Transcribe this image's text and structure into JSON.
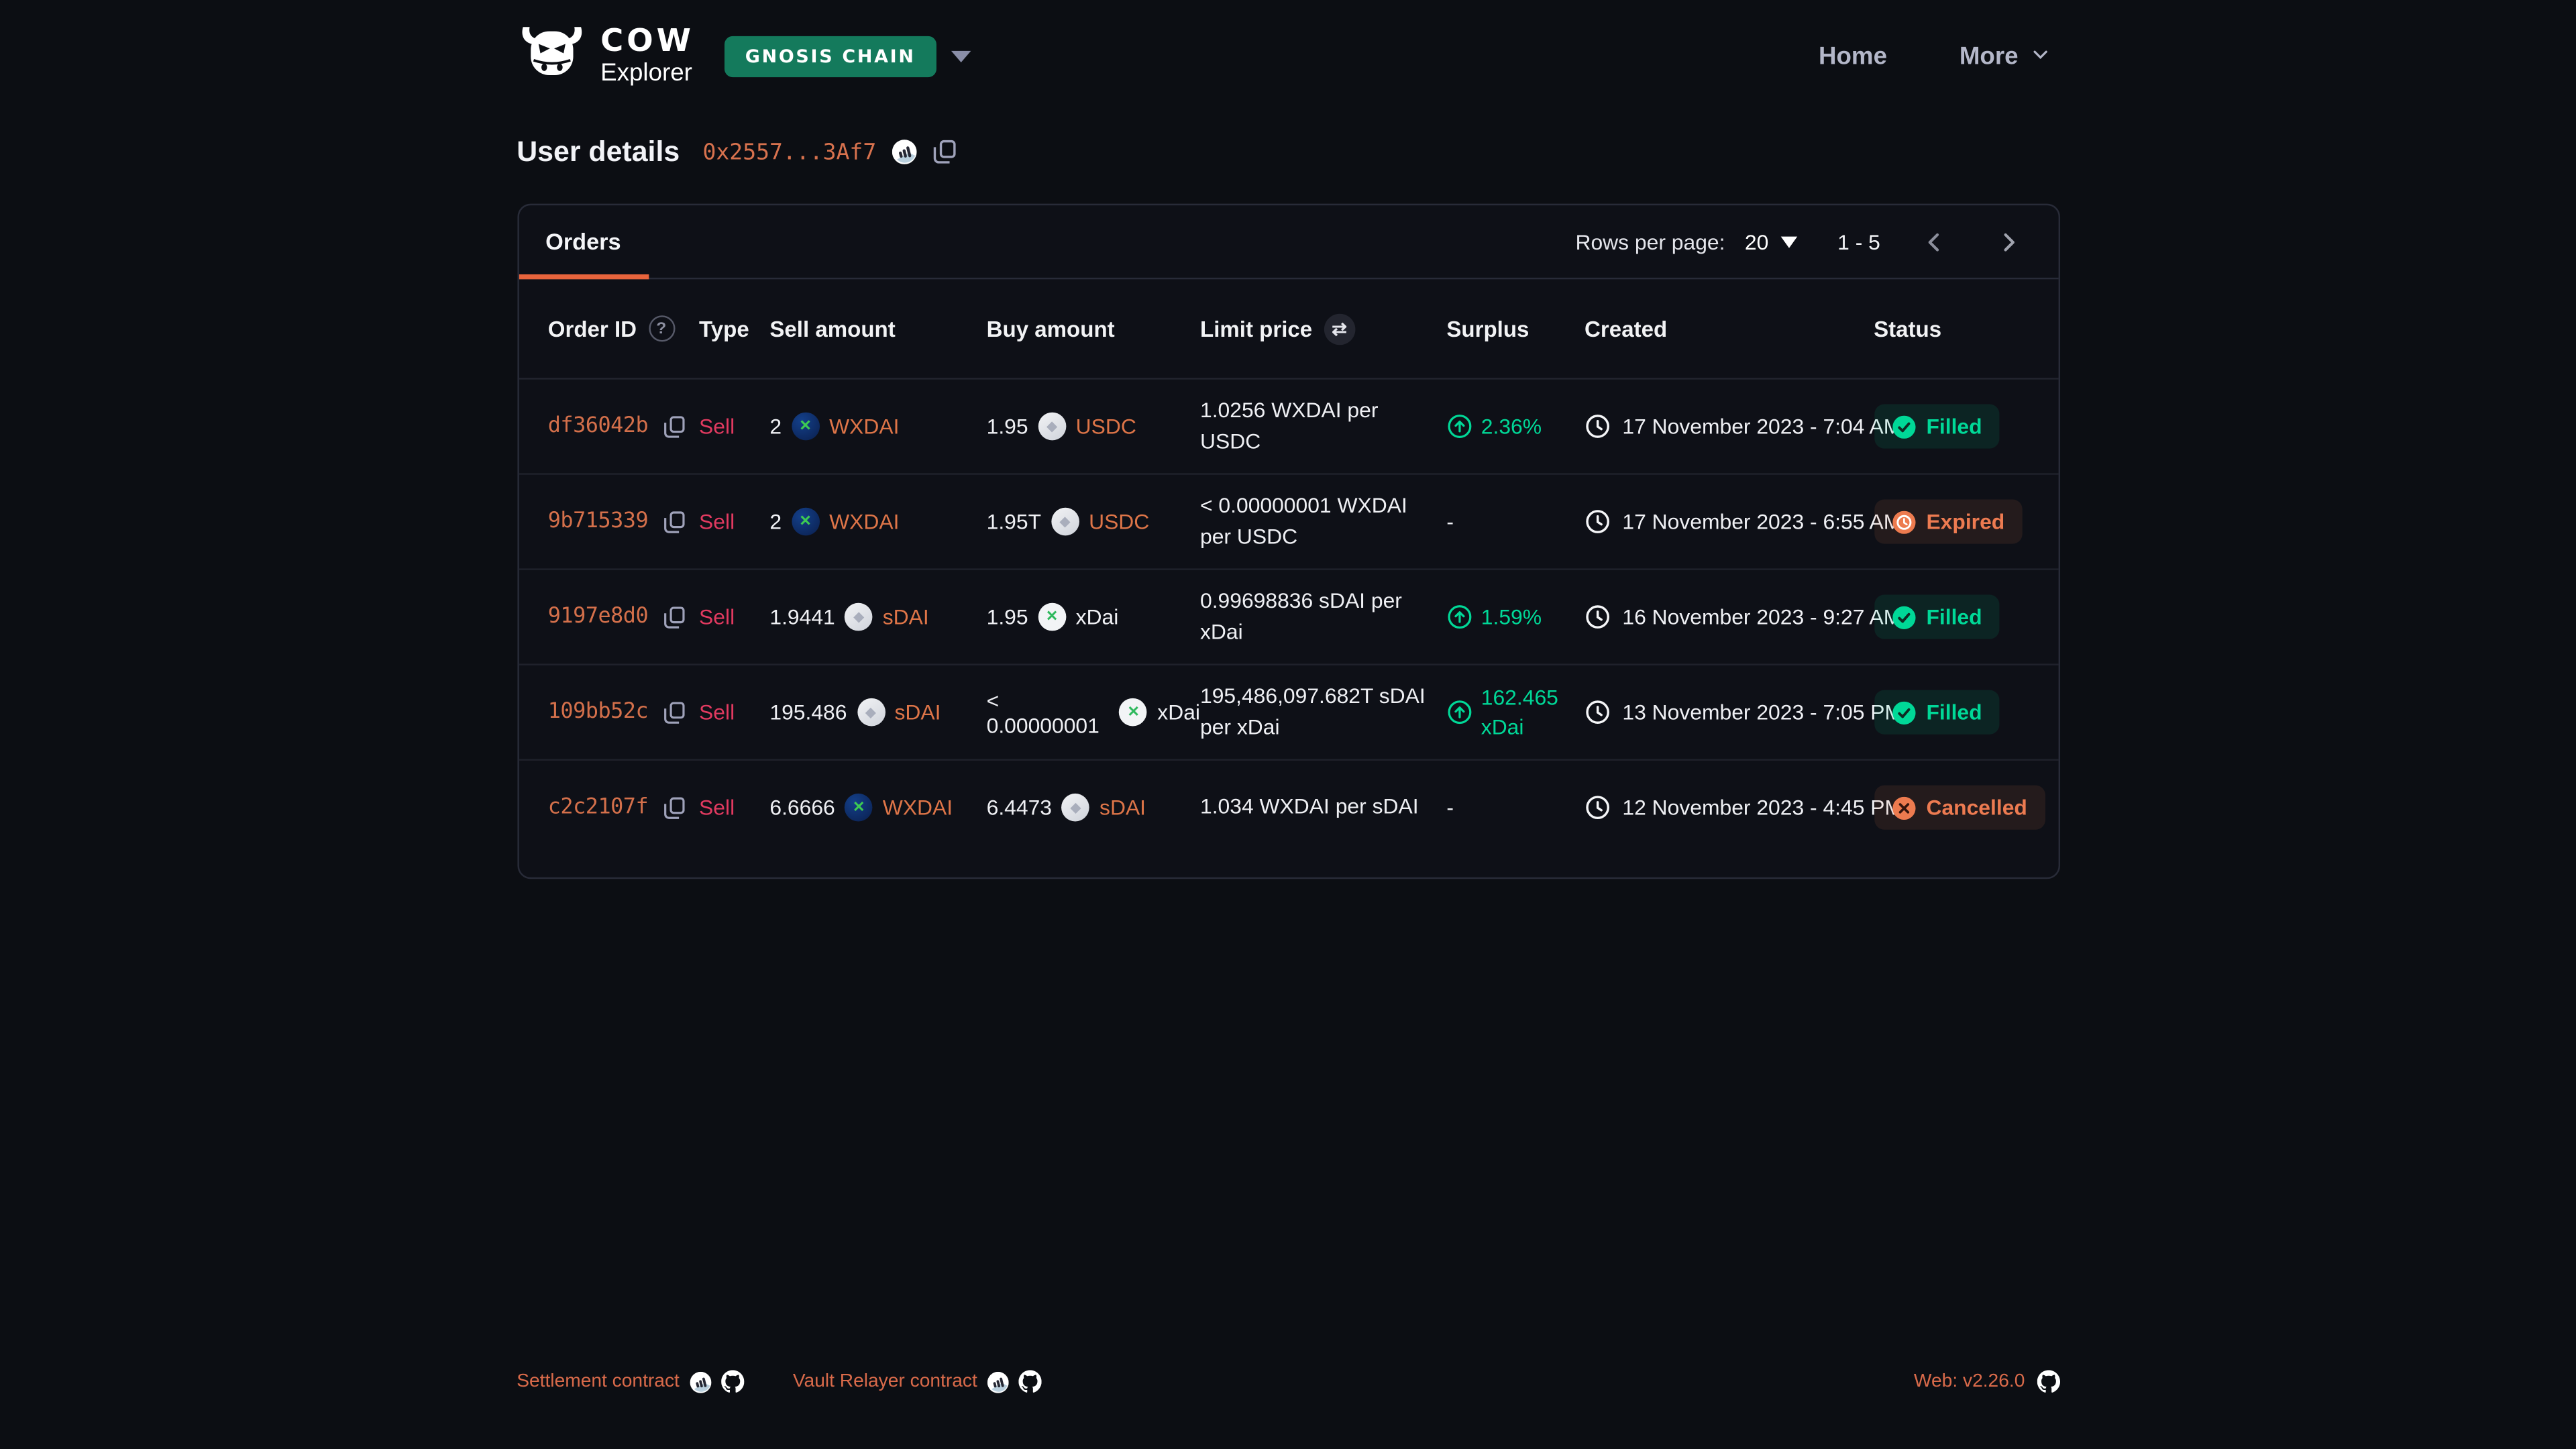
{
  "app": {
    "logo_title": "COW",
    "logo_subtitle": "Explorer",
    "logo_icon": "cow-head-icon",
    "network_badge": "GNOSIS CHAIN",
    "network_caret_icon": "caret-down-icon",
    "nav": [
      {
        "label": "Home"
      },
      {
        "label": "More",
        "icon": "chevron-down-icon"
      }
    ]
  },
  "page": {
    "title": "User details",
    "address_short": "0x2557...3Af7",
    "address_scan_icon": "blockscout-icon",
    "address_copy_icon": "copy-icon"
  },
  "orders_panel": {
    "tab": "Orders",
    "toolbar": {
      "rows_per_page_label": "Rows per page:",
      "rows_per_page_value": "20",
      "range_label": "1 - 5",
      "prev_icon": "chevron-left-icon",
      "next_icon": "chevron-right-icon"
    },
    "columns": [
      {
        "label": "Order ID",
        "icon": "help-circle-icon"
      },
      {
        "label": "Type"
      },
      {
        "label": "Sell amount"
      },
      {
        "label": "Buy amount"
      },
      {
        "label": "Limit price",
        "icon": "swap-icon"
      },
      {
        "label": "Surplus"
      },
      {
        "label": "Created"
      },
      {
        "label": "Status"
      }
    ],
    "row_copy_icon": "copy-icon",
    "created_icon": "clock-icon",
    "rows": [
      {
        "order_id": "df36042b",
        "type": "Sell",
        "sell": {
          "amount": "2",
          "token": "WXDAI",
          "icon": "wxdai-token-icon",
          "link": true
        },
        "buy": {
          "amount": "1.95",
          "token": "USDC",
          "icon": "generic-token-icon",
          "link": true
        },
        "limit_price": "1.0256 WXDAI per USDC",
        "surplus": {
          "text": "2.36%",
          "icon": "arrow-up-circle-icon"
        },
        "created": "17 November 2023 - 7:04 AM",
        "status": {
          "label": "Filled",
          "kind": "filled",
          "icon": "check-circle-icon"
        }
      },
      {
        "order_id": "9b715339",
        "type": "Sell",
        "sell": {
          "amount": "2",
          "token": "WXDAI",
          "icon": "wxdai-token-icon",
          "link": true
        },
        "buy": {
          "amount": "1.95T",
          "token": "USDC",
          "icon": "generic-token-icon",
          "link": true
        },
        "limit_price": "< 0.00000001 WXDAI per USDC",
        "surplus": null,
        "created": "17 November 2023 - 6:55 AM",
        "status": {
          "label": "Expired",
          "kind": "expired",
          "icon": "clock-circle-icon"
        }
      },
      {
        "order_id": "9197e8d0",
        "type": "Sell",
        "sell": {
          "amount": "1.9441",
          "token": "sDAI",
          "icon": "generic-token-icon",
          "link": true
        },
        "buy": {
          "amount": "1.95",
          "token": "xDai",
          "icon": "xdai-token-icon",
          "link": false
        },
        "limit_price": "0.99698836 sDAI per xDai",
        "surplus": {
          "text": "1.59%",
          "icon": "arrow-up-circle-icon"
        },
        "created": "16 November 2023 - 9:27 AM",
        "status": {
          "label": "Filled",
          "kind": "filled",
          "icon": "check-circle-icon"
        }
      },
      {
        "order_id": "109bb52c",
        "type": "Sell",
        "sell": {
          "amount": "195.486",
          "token": "sDAI",
          "icon": "generic-token-icon",
          "link": true
        },
        "buy": {
          "amount": "< 0.00000001",
          "token": "xDai",
          "icon": "xdai-token-icon",
          "link": false
        },
        "limit_price": "195,486,097.682T sDAI per xDai",
        "surplus": {
          "text": "162.465 xDai",
          "icon": "arrow-up-circle-icon"
        },
        "created": "13 November 2023 - 7:05 PM",
        "status": {
          "label": "Filled",
          "kind": "filled",
          "icon": "check-circle-icon"
        }
      },
      {
        "order_id": "c2c2107f",
        "type": "Sell",
        "sell": {
          "amount": "6.6666",
          "token": "WXDAI",
          "icon": "wxdai-token-icon",
          "link": true
        },
        "buy": {
          "amount": "6.4473",
          "token": "sDAI",
          "icon": "generic-token-icon",
          "link": true
        },
        "limit_price": "1.034 WXDAI per sDAI",
        "surplus": null,
        "created": "12 November 2023 - 4:45 PM",
        "status": {
          "label": "Cancelled",
          "kind": "cancelled",
          "icon": "x-circle-icon"
        }
      }
    ]
  },
  "footer": {
    "links": [
      {
        "label": "Settlement contract",
        "icons": [
          "blockscout-icon",
          "github-icon"
        ]
      },
      {
        "label": "Vault Relayer contract",
        "icons": [
          "blockscout-icon",
          "github-icon"
        ]
      }
    ],
    "version_label": "Web: v2.26.0",
    "version_icon": "github-icon"
  },
  "colors": {
    "page_bg": "#0C0E13",
    "card_border": "#282B38",
    "accent_orange": "#E8643C",
    "link_orange": "#D4704B",
    "token_orange": "#DE7548",
    "sell_red": "#E23A60",
    "green": "#00D897",
    "warn_orange": "#ED7B51",
    "network_green": "#147A5C",
    "nav_gray": "#B4B7C9"
  }
}
